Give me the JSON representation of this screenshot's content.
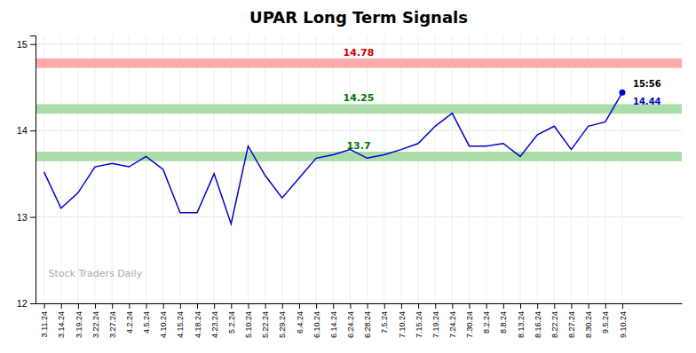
{
  "chart_data": {
    "type": "line",
    "title": "UPAR Long Term Signals",
    "categories": [
      "3.11.24",
      "3.14.24",
      "3.19.24",
      "3.22.24",
      "3.27.24",
      "4.2.24",
      "4.5.24",
      "4.10.24",
      "4.15.24",
      "4.18.24",
      "4.23.24",
      "5.2.24",
      "5.10.24",
      "5.22.24",
      "5.29.24",
      "6.4.24",
      "6.10.24",
      "6.14.24",
      "6.24.24",
      "6.28.24",
      "7.5.24",
      "7.10.24",
      "7.15.24",
      "7.19.24",
      "7.24.24",
      "7.30.24",
      "8.2.24",
      "8.8.24",
      "8.13.24",
      "8.16.24",
      "8.22.24",
      "8.27.24",
      "8.30.24",
      "9.5.24",
      "9.10.24"
    ],
    "values": [
      13.52,
      13.1,
      13.28,
      13.58,
      13.62,
      13.58,
      13.7,
      13.55,
      13.05,
      13.05,
      13.5,
      12.92,
      13.82,
      13.48,
      13.22,
      13.45,
      13.68,
      13.72,
      13.78,
      13.68,
      13.72,
      13.78,
      13.85,
      14.05,
      14.2,
      13.82,
      13.82,
      13.85,
      13.7,
      13.95,
      14.05,
      13.78,
      14.05,
      14.1,
      14.44
    ],
    "color": "#0000cc",
    "ylim": [
      12,
      15.1
    ],
    "yticks": [
      12,
      13,
      14,
      15
    ],
    "grid": true,
    "bands": [
      {
        "value": 14.78,
        "band": 0.055,
        "color": "#ffaaaa",
        "label": "14.78",
        "label_color": "#cc0000"
      },
      {
        "value": 14.25,
        "band": 0.055,
        "color": "#aaddaa",
        "label": "14.25",
        "label_color": "#007700"
      },
      {
        "value": 13.7,
        "band": 0.055,
        "color": "#aaddaa",
        "label": "13.7",
        "label_color": "#007700"
      }
    ],
    "annotations": [
      {
        "text": "15:56",
        "color": "#000000"
      },
      {
        "text": "14.44",
        "color": "#0000cc"
      }
    ],
    "watermark": {
      "text": "Stock Traders Daily",
      "color": "#aaaaaa"
    }
  }
}
